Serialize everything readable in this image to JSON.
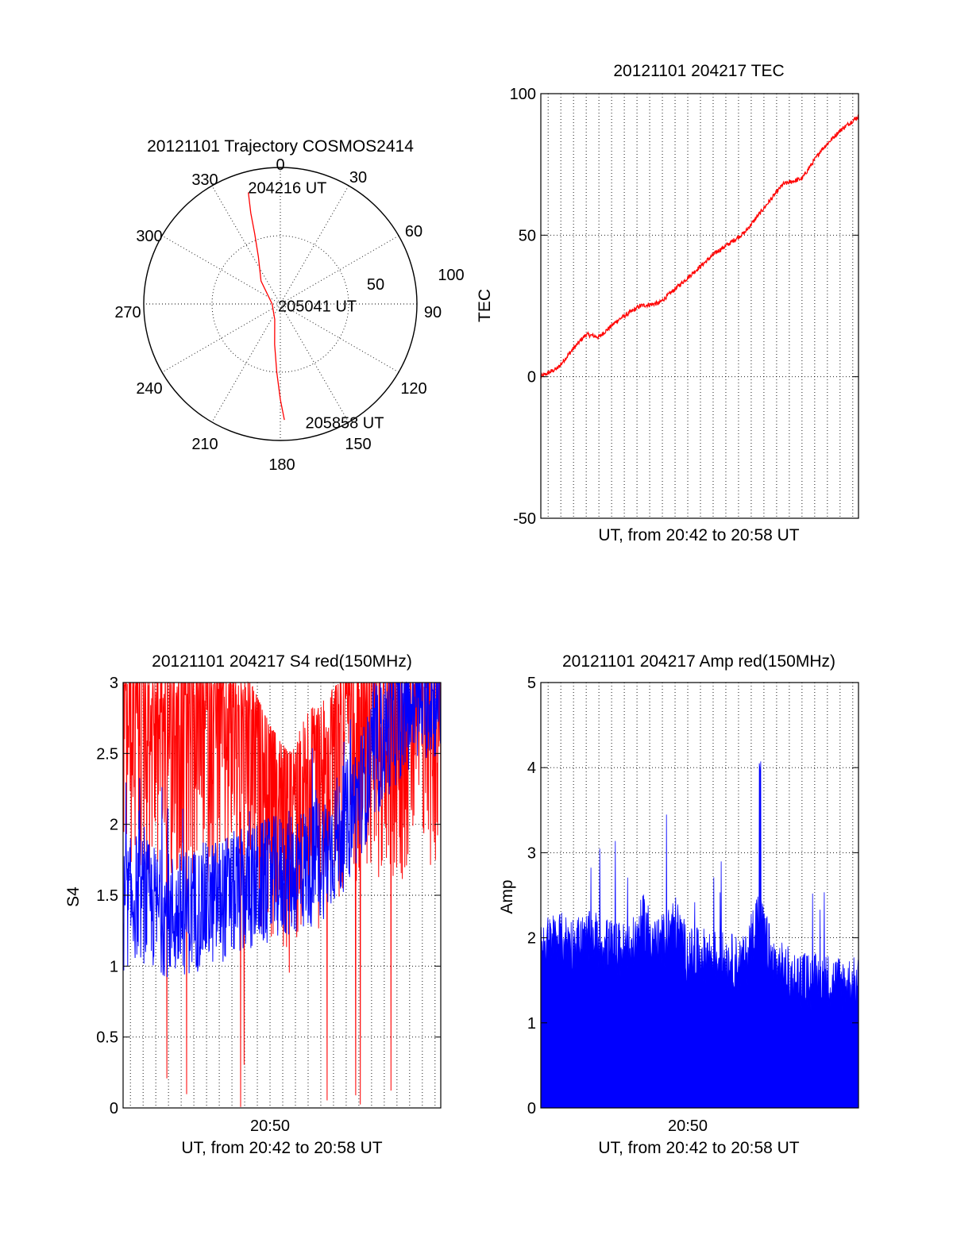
{
  "colors": {
    "red": "#ff0000",
    "blue": "#0000ff",
    "axis": "#000000"
  },
  "chart_data": [
    {
      "type": "polar",
      "title": "20121101 Trajectory COSMOS2414",
      "angle_labels": [
        "0",
        "30",
        "60",
        "90",
        "120",
        "150",
        "180",
        "210",
        "240",
        "270",
        "300",
        "330"
      ],
      "radial_tick_labels": [
        "50",
        "100"
      ],
      "rlim": [
        0,
        100
      ],
      "grid": true,
      "series": [
        {
          "color": "#ff0000",
          "points": [
            {
              "az": 344,
              "r": 85
            },
            {
              "az": 342,
              "r": 70
            },
            {
              "az": 340,
              "r": 55
            },
            {
              "az": 335,
              "r": 38
            },
            {
              "az": 320,
              "r": 22
            },
            {
              "az": 270,
              "r": 6
            },
            {
              "az": 200,
              "r": 12
            },
            {
              "az": 188,
              "r": 30
            },
            {
              "az": 183,
              "r": 50
            },
            {
              "az": 180,
              "r": 70
            },
            {
              "az": 178,
              "r": 85
            }
          ]
        }
      ],
      "annotations": [
        {
          "text": "204216 UT",
          "az": 352,
          "r": 86
        },
        {
          "text": "205041 UT",
          "az": 98,
          "r": 10
        },
        {
          "text": "205858 UT",
          "az": 161,
          "r": 92
        }
      ]
    },
    {
      "type": "line",
      "title": "20121101 204217 TEC",
      "xlabel": "UT, from 20:42 to 20:58 UT",
      "ylabel": "TEC",
      "xlim": [
        "20:42:17",
        "20:58:58"
      ],
      "ylim": [
        -50,
        100
      ],
      "yticks": [
        "-50",
        "0",
        "50",
        "100"
      ],
      "grid": true,
      "series": [
        {
          "color": "#ff0000",
          "x": [
            "20:42:17",
            "20:43:10",
            "20:44:00",
            "20:44:40",
            "20:45:20",
            "20:46:20",
            "20:47:30",
            "20:48:30",
            "20:49:30",
            "20:50:30",
            "20:51:30",
            "20:52:10",
            "20:53:00",
            "20:54:10",
            "20:55:00",
            "20:56:00",
            "20:57:00",
            "20:58:00",
            "20:58:58"
          ],
          "y": [
            0,
            3,
            10,
            15,
            14,
            20,
            25,
            26,
            32,
            38,
            44,
            47,
            51,
            61,
            68,
            70,
            80,
            87,
            92
          ]
        }
      ]
    },
    {
      "type": "line",
      "title": "20121101 204217 S4 red(150MHz)",
      "xlabel": "UT, from 20:42 to 20:58 UT",
      "ylabel": "S4",
      "xlim": [
        "20:42:17",
        "20:58:58"
      ],
      "ylim": [
        0,
        3
      ],
      "xticks": [
        "20:50"
      ],
      "yticks": [
        "0",
        "0.5",
        "1",
        "1.5",
        "2",
        "2.5",
        "3"
      ],
      "grid": true,
      "series": [
        {
          "color": "#ff0000",
          "x": [
            "20:42:17",
            "20:44:00",
            "20:46:00",
            "20:48:00",
            "20:49:00",
            "20:50:00",
            "20:51:00",
            "20:52:00",
            "20:53:00",
            "20:54:00",
            "20:55:00",
            "20:56:00",
            "20:57:00",
            "20:58:58"
          ],
          "y": [
            2.9,
            2.85,
            2.85,
            2.8,
            2.7,
            2.4,
            2.2,
            2.5,
            2.6,
            2.8,
            2.85,
            2.9,
            2.9,
            2.95
          ]
        },
        {
          "color": "#0000ff",
          "x": [
            "20:42:17",
            "20:43:00",
            "20:44:00",
            "20:45:00",
            "20:46:00",
            "20:47:00",
            "20:48:00",
            "20:49:00",
            "20:50:00",
            "20:51:00",
            "20:52:00",
            "20:53:00",
            "20:54:00",
            "20:55:00",
            "20:56:00",
            "20:57:00",
            "20:58:00",
            "20:58:58"
          ],
          "y": [
            1.4,
            1.5,
            1.4,
            1.35,
            1.4,
            1.45,
            1.5,
            1.55,
            1.6,
            1.65,
            1.7,
            1.8,
            2.0,
            2.3,
            2.6,
            2.8,
            2.9,
            2.9
          ]
        }
      ]
    },
    {
      "type": "area",
      "title": "20121101 204217 Amp red(150MHz)",
      "xlabel": "UT, from 20:42 to 20:58 UT",
      "ylabel": "Amp",
      "xlim": [
        "20:42:17",
        "20:58:58"
      ],
      "ylim": [
        0,
        5
      ],
      "xticks": [
        "20:50"
      ],
      "yticks": [
        "0",
        "1",
        "2",
        "3",
        "4",
        "5"
      ],
      "grid": true,
      "series": [
        {
          "color": "#0000ff",
          "x": [
            "20:42:17",
            "20:43:00",
            "20:44:00",
            "20:45:00",
            "20:46:00",
            "20:47:00",
            "20:47:40",
            "20:48:30",
            "20:49:20",
            "20:50:00",
            "20:51:00",
            "20:52:00",
            "20:53:00",
            "20:53:40",
            "20:54:30",
            "20:55:30",
            "20:56:30",
            "20:57:30",
            "20:58:58"
          ],
          "y": [
            1.8,
            1.9,
            1.85,
            1.9,
            1.8,
            1.75,
            2.1,
            1.8,
            2.1,
            1.7,
            1.7,
            1.65,
            1.6,
            2.2,
            1.6,
            1.45,
            1.4,
            1.4,
            1.35
          ]
        }
      ]
    }
  ]
}
